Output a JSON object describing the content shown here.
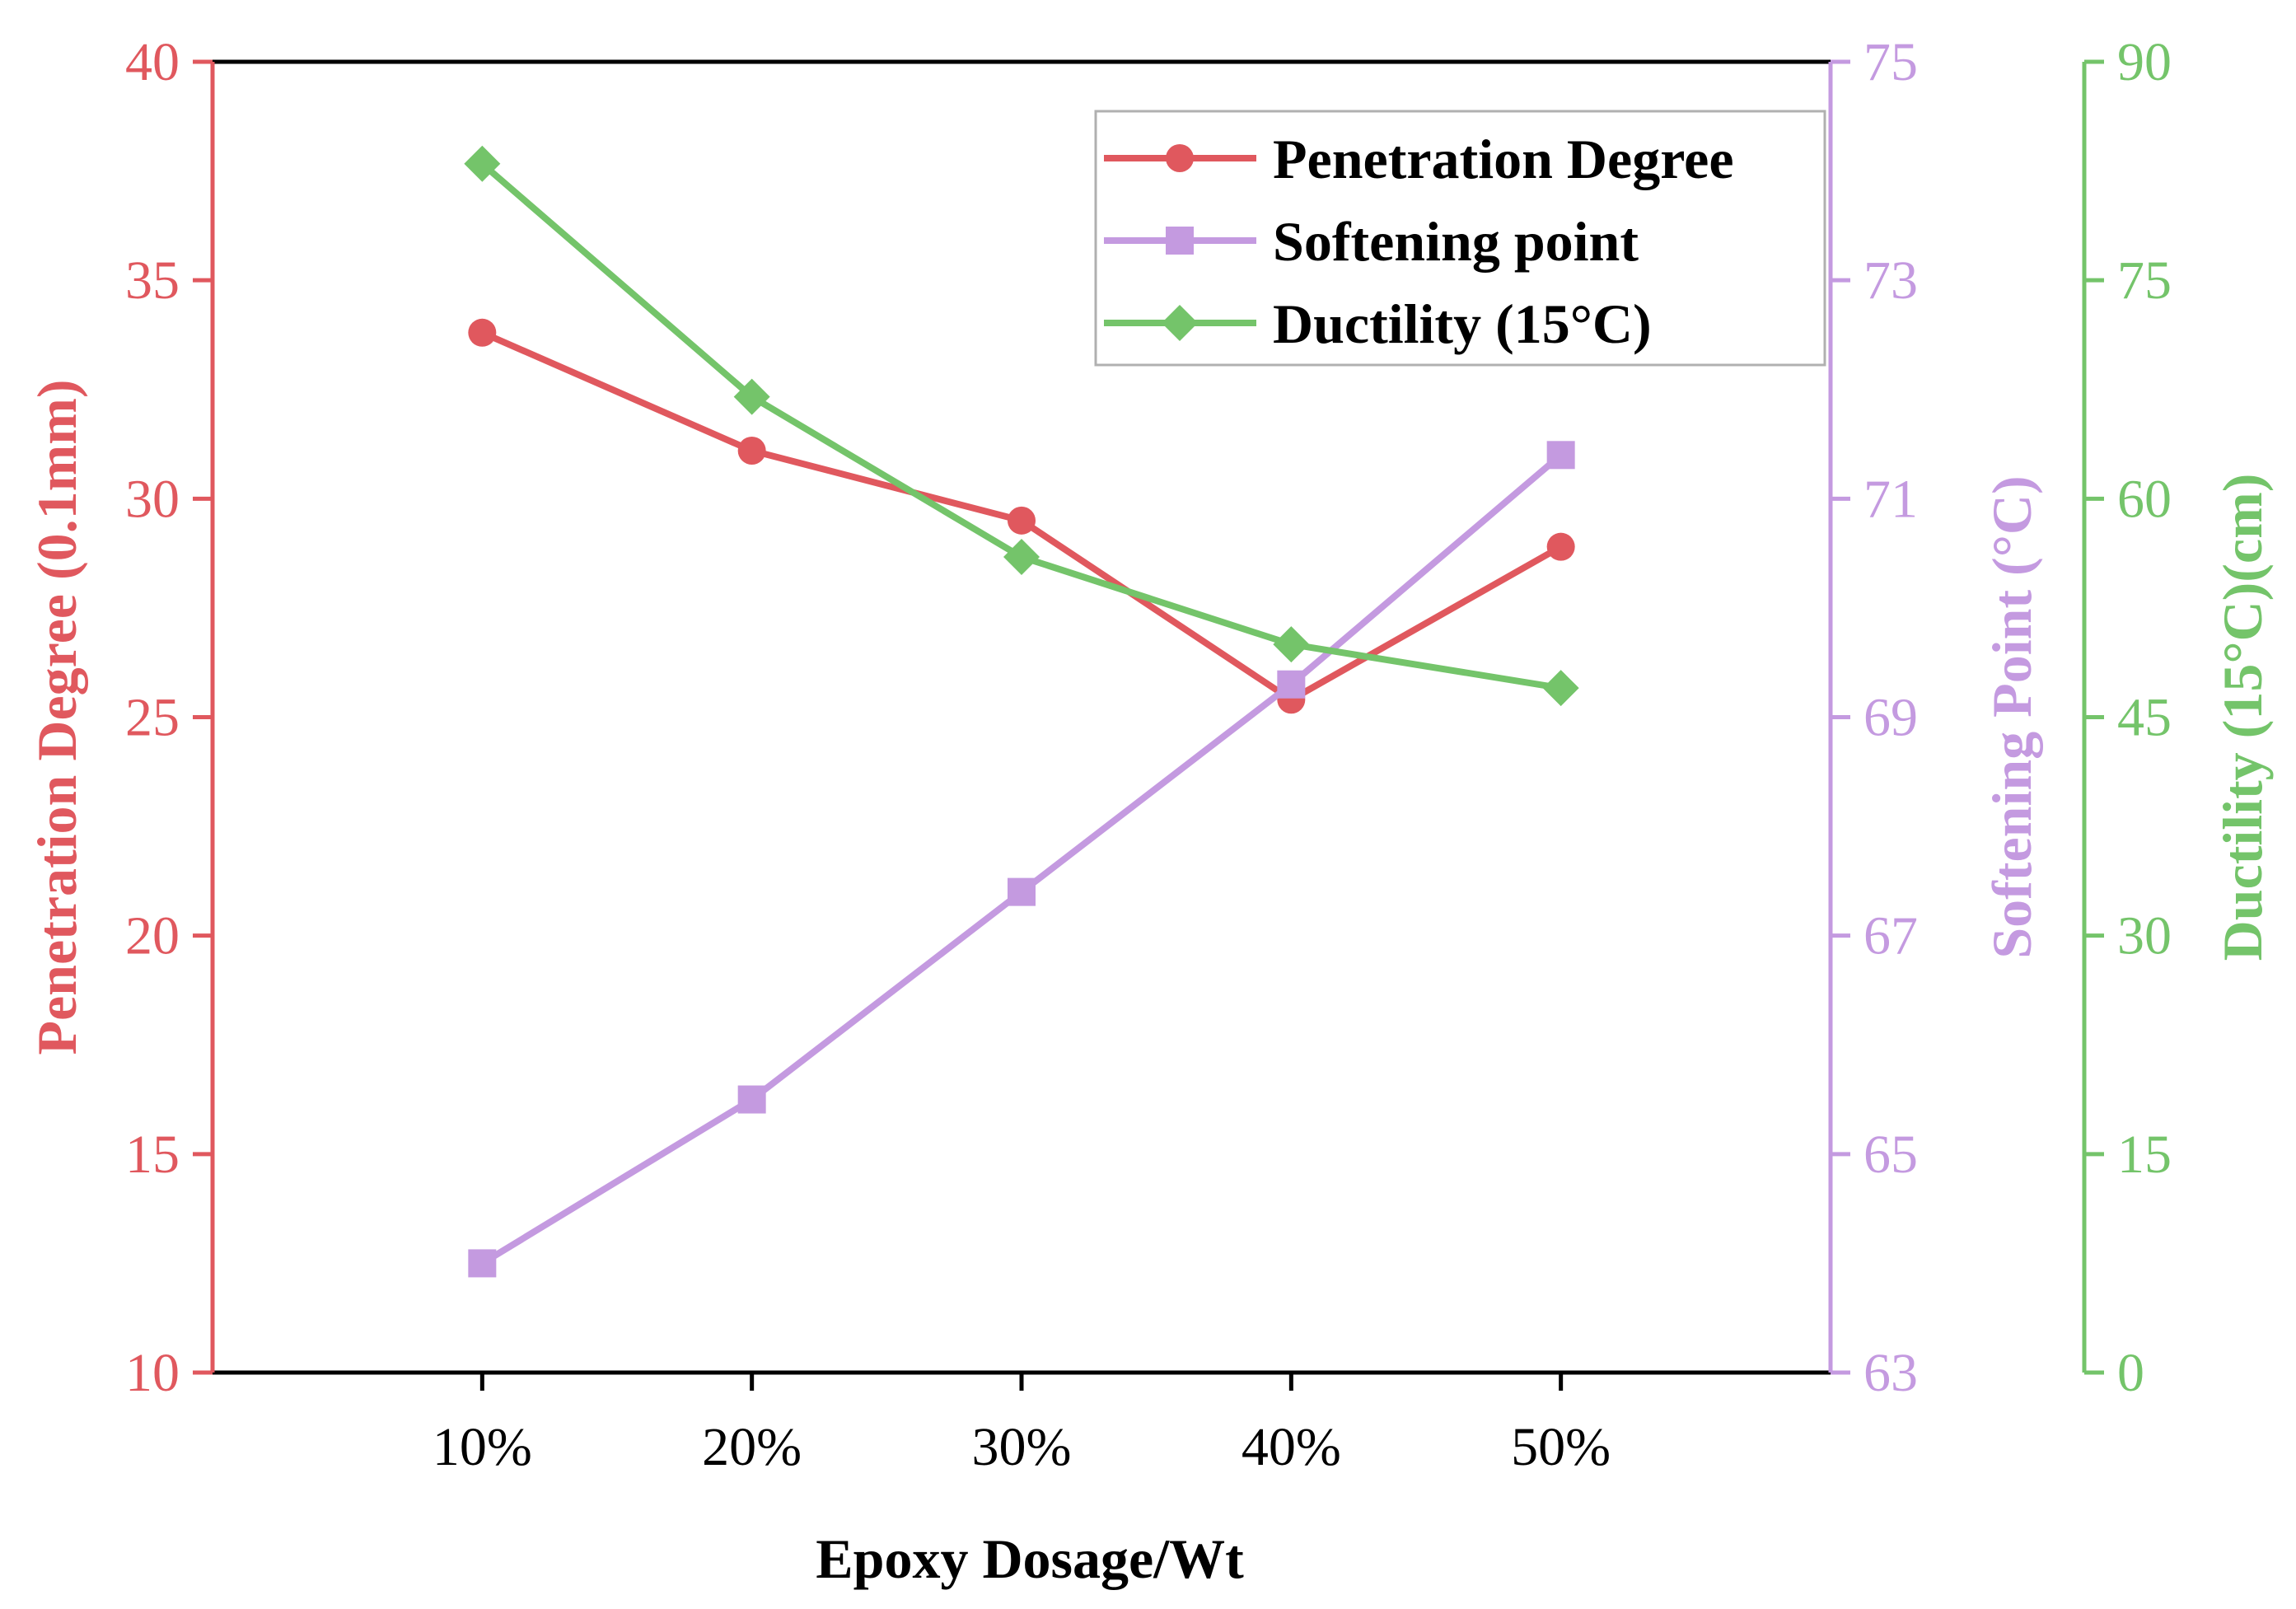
{
  "chart_data": {
    "type": "line",
    "xlabel": "Epoxy Dosage/Wt",
    "categories": [
      "10%",
      "20%",
      "30%",
      "40%",
      "50%"
    ],
    "axes": {
      "left": {
        "label": "Penetration Degree (0.1mm)",
        "range": [
          10,
          40
        ],
        "ticks": [
          10,
          15,
          20,
          25,
          30,
          35,
          40
        ],
        "color": "#e0585e"
      },
      "right1": {
        "label": "Softening Point (°C)",
        "range": [
          63,
          75
        ],
        "ticks": [
          63,
          65,
          67,
          69,
          71,
          73,
          75
        ],
        "color": "#c49ae0"
      },
      "right2": {
        "label": "Ductility (15°C)(cm)",
        "range": [
          0,
          90
        ],
        "ticks": [
          0,
          15,
          30,
          45,
          60,
          75,
          90
        ],
        "color": "#74c46a"
      }
    },
    "series": [
      {
        "name": "Penetration Degree",
        "axis": "left",
        "marker": "circle",
        "color": "#e0585e",
        "values": [
          33.8,
          31.1,
          29.5,
          25.4,
          28.9
        ]
      },
      {
        "name": "Softening point",
        "axis": "right1",
        "marker": "square",
        "color": "#c49ae0",
        "values": [
          64.0,
          65.5,
          67.4,
          69.3,
          71.4
        ]
      },
      {
        "name": "Ductility (15°C)",
        "axis": "right2",
        "marker": "diamond",
        "color": "#74c46a",
        "values": [
          83.0,
          67.0,
          56.0,
          50.0,
          47.0
        ]
      }
    ],
    "legend": {
      "position": "top-right"
    }
  }
}
